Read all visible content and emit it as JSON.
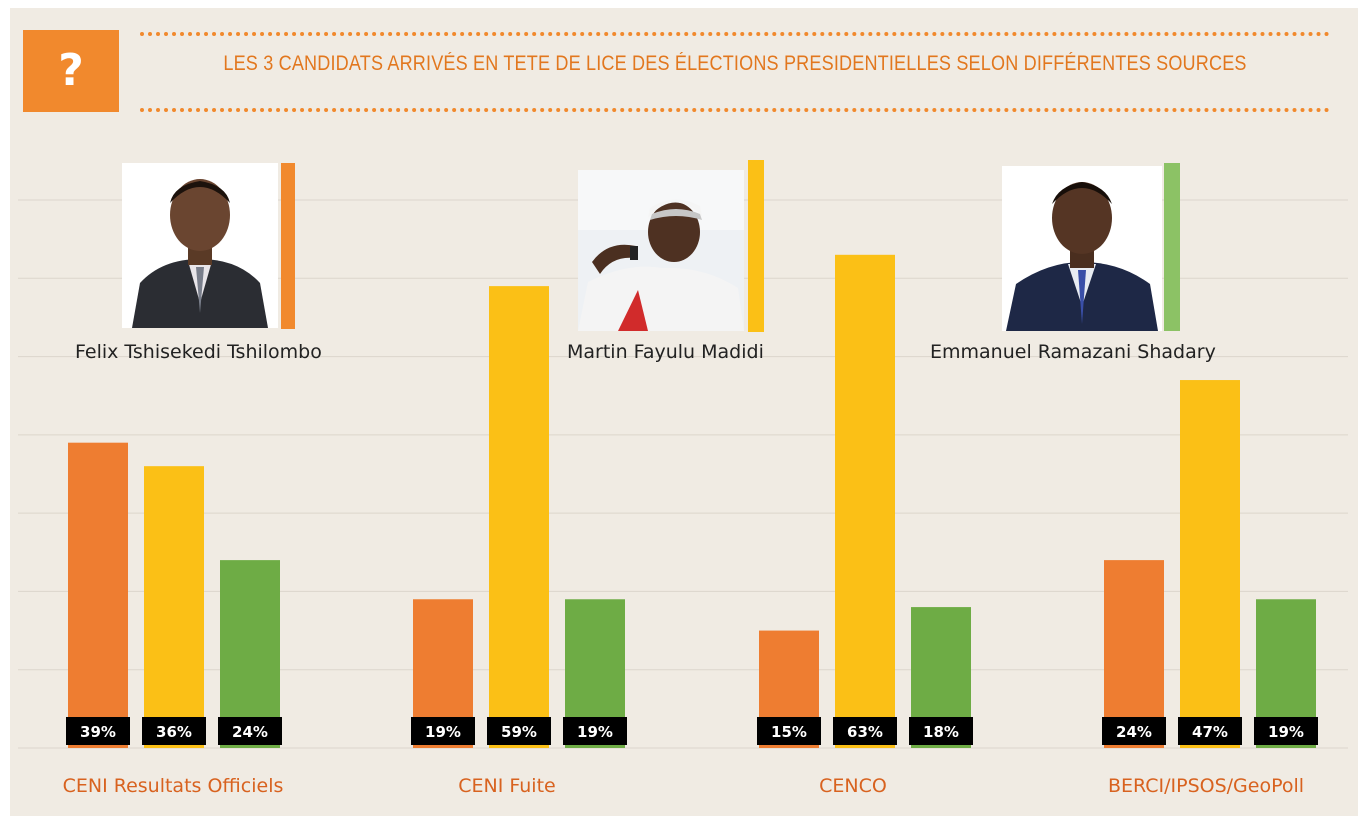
{
  "header": {
    "badge": "?",
    "title": "LES 3 CANDIDATS ARRIVÉS EN TETE DE LICE DES ÉLECTIONS PRESIDENTIELLES SELON DIFFÉRENTES SOURCES"
  },
  "candidates": [
    {
      "name": "Felix Tshisekedi Tshilombo",
      "color": "#ee7d31",
      "accent_bar": "#f1892d"
    },
    {
      "name": "Martin Fayulu Madidi",
      "color": "#fbc016",
      "accent_bar": "#fbc016"
    },
    {
      "name": "Emmanuel Ramazani Shadary",
      "color": "#6eac45",
      "accent_bar": "#8cc265"
    }
  ],
  "colors": {
    "background": "#f0ebe3",
    "gridline": "#dcd6cc",
    "label_bg": "#000000",
    "accent": "#f1892d",
    "title": "#e2771e"
  },
  "chart_data": {
    "type": "bar",
    "categories": [
      "CENI Resultats Officiels",
      "CENI Fuite",
      "CENCO",
      "BERCI/IPSOS/GeoPoll"
    ],
    "series": [
      {
        "name": "Felix Tshisekedi Tshilombo",
        "values": [
          39,
          19,
          15,
          24
        ]
      },
      {
        "name": "Martin Fayulu Madidi",
        "values": [
          36,
          59,
          63,
          47
        ]
      },
      {
        "name": "Emmanuel Ramazani Shadary",
        "values": [
          24,
          19,
          18,
          19
        ]
      }
    ],
    "value_labels": [
      [
        "39%",
        "19%",
        "15%",
        "24%"
      ],
      [
        "36%",
        "59%",
        "63%",
        "47%"
      ],
      [
        "24%",
        "19%",
        "18%",
        "19%"
      ]
    ],
    "ylim": [
      0,
      70
    ],
    "grid": true,
    "legend": "photos with names above bars"
  }
}
